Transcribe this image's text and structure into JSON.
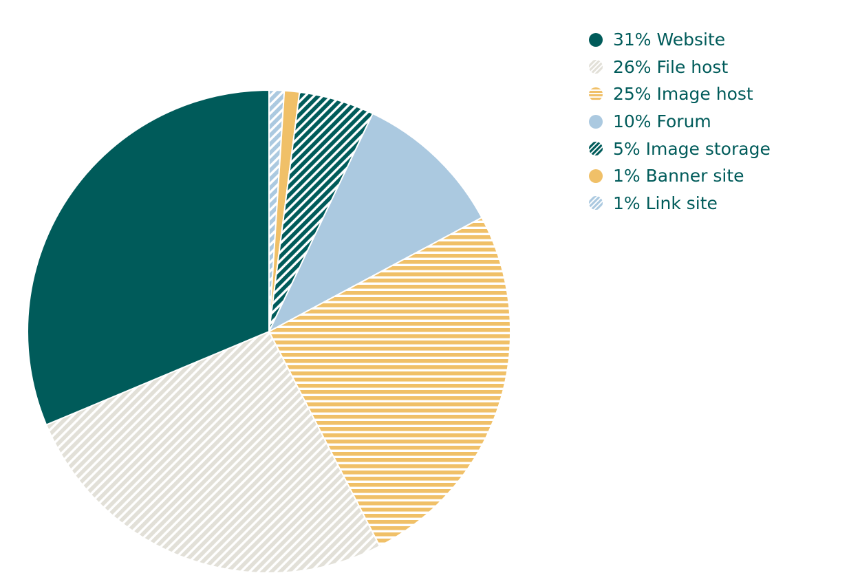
{
  "chart_data": {
    "type": "pie",
    "start_angle_deg": 0,
    "direction": "clockwise",
    "slices": [
      {
        "label": "1% Link site",
        "value": 1,
        "color": "#abc9e0",
        "pattern": "diagonal-stripes"
      },
      {
        "label": "1% Banner site",
        "value": 1,
        "color": "#f0c068",
        "pattern": "solid"
      },
      {
        "label": "5% Image storage",
        "value": 5,
        "color": "#005b5a",
        "pattern": "diagonal-stripes"
      },
      {
        "label": "10% Forum",
        "value": 10,
        "color": "#abc9e0",
        "pattern": "solid"
      },
      {
        "label": "25% Image host",
        "value": 25,
        "color": "#f0c068",
        "pattern": "horizontal-stripes"
      },
      {
        "label": "26% File host",
        "value": 26,
        "color": "#e2e0d8",
        "pattern": "diagonal-stripes"
      },
      {
        "label": "31% Website",
        "value": 31,
        "color": "#005b5a",
        "pattern": "solid"
      }
    ],
    "legend": {
      "placement": "top-right",
      "order": [
        "31% Website",
        "26% File host",
        "25% Image host",
        "10% Forum",
        "5% Image storage",
        "1% Banner site",
        "1% Link site"
      ]
    }
  },
  "legend_text_color": "#005b5a"
}
